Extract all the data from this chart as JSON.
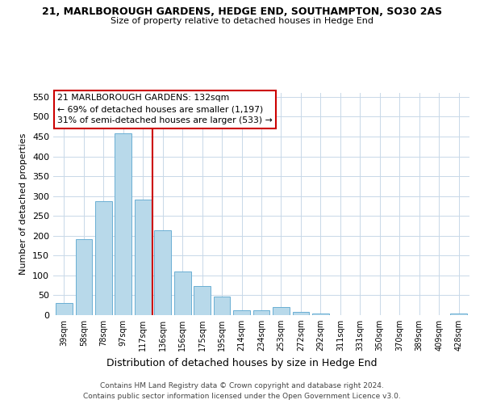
{
  "title": "21, MARLBOROUGH GARDENS, HEDGE END, SOUTHAMPTON, SO30 2AS",
  "subtitle": "Size of property relative to detached houses in Hedge End",
  "xlabel": "Distribution of detached houses by size in Hedge End",
  "ylabel": "Number of detached properties",
  "bar_labels": [
    "39sqm",
    "58sqm",
    "78sqm",
    "97sqm",
    "117sqm",
    "136sqm",
    "156sqm",
    "175sqm",
    "195sqm",
    "214sqm",
    "234sqm",
    "253sqm",
    "272sqm",
    "292sqm",
    "311sqm",
    "331sqm",
    "350sqm",
    "370sqm",
    "389sqm",
    "409sqm",
    "428sqm"
  ],
  "bar_values": [
    30,
    192,
    288,
    459,
    292,
    213,
    110,
    73,
    47,
    13,
    13,
    21,
    8,
    5,
    0,
    0,
    0,
    0,
    0,
    0,
    5
  ],
  "bar_color": "#b8d9ea",
  "bar_edge_color": "#6aafd4",
  "vline_bar_index": 5,
  "vline_color": "#cc0000",
  "ylim": [
    0,
    560
  ],
  "yticks": [
    0,
    50,
    100,
    150,
    200,
    250,
    300,
    350,
    400,
    450,
    500,
    550
  ],
  "annotation_title": "21 MARLBOROUGH GARDENS: 132sqm",
  "annotation_line1": "← 69% of detached houses are smaller (1,197)",
  "annotation_line2": "31% of semi-detached houses are larger (533) →",
  "annotation_box_color": "#ffffff",
  "annotation_box_edge": "#cc0000",
  "footer1": "Contains HM Land Registry data © Crown copyright and database right 2024.",
  "footer2": "Contains public sector information licensed under the Open Government Licence v3.0.",
  "bg_color": "#ffffff",
  "grid_color": "#c8d8e8"
}
